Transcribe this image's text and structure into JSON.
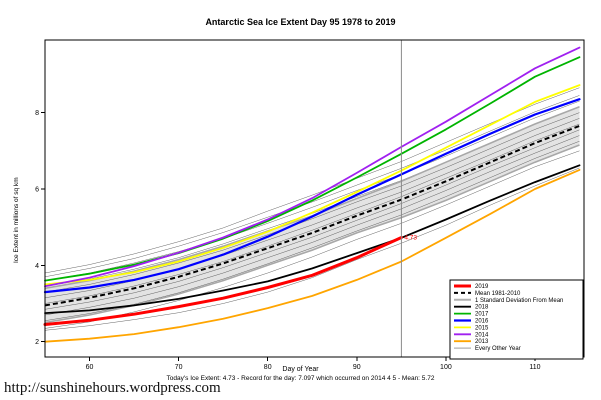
{
  "page": {
    "url_text": "http://sunshinehours.wordpress.com"
  },
  "chart_data": {
    "type": "line",
    "title": "Antarctic Sea Ice Extent Day 95 1978 to 2019",
    "xlabel": "Day of Year",
    "ylabel": "Ice Extent in millions of sq km",
    "caption": "Today's Ice Extent: 4.73  -  Record for the day: 7.097 which occurred on 2014 4 5  -  Mean: 5.72",
    "xlim": [
      55,
      115.5
    ],
    "ylim": [
      1.6,
      9.9
    ],
    "xticks": [
      60,
      70,
      80,
      90,
      100,
      110
    ],
    "yticks": [
      2,
      4,
      6,
      8
    ],
    "grid": false,
    "vline_x": 95,
    "annotation": {
      "x": 95,
      "y": 4.73,
      "text": "4.73",
      "color": "#ff0000"
    },
    "x": [
      55,
      60,
      65,
      70,
      75,
      80,
      85,
      90,
      95,
      100,
      105,
      110,
      115
    ],
    "mean_label": "Mean 1981-2010",
    "mean": [
      2.95,
      3.15,
      3.4,
      3.7,
      4.05,
      4.45,
      4.85,
      5.3,
      5.72,
      6.2,
      6.7,
      7.2,
      7.65
    ],
    "sd_band": {
      "upper": [
        3.4,
        3.6,
        3.85,
        4.15,
        4.5,
        4.9,
        5.3,
        5.75,
        6.2,
        6.7,
        7.2,
        7.7,
        8.15
      ],
      "lower": [
        2.5,
        2.7,
        2.95,
        3.25,
        3.6,
        4.0,
        4.4,
        4.85,
        5.25,
        5.7,
        6.2,
        6.7,
        7.15
      ]
    },
    "series": [
      {
        "name": "2013",
        "color": "#ffa500",
        "width": 1.8,
        "values": [
          2.0,
          2.08,
          2.2,
          2.38,
          2.6,
          2.88,
          3.2,
          3.62,
          4.1,
          4.72,
          5.35,
          6.0,
          6.5
        ]
      },
      {
        "name": "2018",
        "color": "#000000",
        "width": 1.8,
        "values": [
          2.75,
          2.82,
          2.95,
          3.12,
          3.34,
          3.58,
          3.92,
          4.32,
          4.72,
          5.2,
          5.7,
          6.18,
          6.62
        ]
      },
      {
        "name": "2016",
        "color": "#0000ff",
        "width": 2.2,
        "values": [
          3.3,
          3.42,
          3.62,
          3.9,
          4.28,
          4.75,
          5.28,
          5.85,
          6.38,
          6.92,
          7.45,
          7.95,
          8.35
        ]
      },
      {
        "name": "2015",
        "color": "#ffff00",
        "width": 1.8,
        "values": [
          3.5,
          3.62,
          3.82,
          4.1,
          4.46,
          4.88,
          5.38,
          5.92,
          6.48,
          7.08,
          7.68,
          8.28,
          8.72
        ]
      },
      {
        "name": "2017",
        "color": "#00b400",
        "width": 1.8,
        "values": [
          3.6,
          3.78,
          4.02,
          4.32,
          4.7,
          5.16,
          5.7,
          6.3,
          6.92,
          7.56,
          8.24,
          8.94,
          9.45
        ]
      },
      {
        "name": "2014",
        "color": "#a020f0",
        "width": 1.8,
        "values": [
          3.45,
          3.68,
          3.98,
          4.33,
          4.73,
          5.2,
          5.76,
          6.42,
          7.1,
          7.76,
          8.46,
          9.16,
          9.7
        ]
      },
      {
        "name": "2019",
        "color": "#ff0000",
        "width": 3,
        "x": [
          55,
          60,
          65,
          70,
          75,
          80,
          85,
          90,
          95
        ],
        "values": [
          2.45,
          2.56,
          2.72,
          2.92,
          3.14,
          3.42,
          3.74,
          4.2,
          4.73
        ]
      }
    ],
    "other_years": [
      [
        2.3,
        2.42,
        2.58,
        2.76,
        3.0,
        3.3,
        3.68,
        4.15,
        4.58,
        5.05,
        5.58,
        6.08,
        6.55
      ],
      [
        2.35,
        2.52,
        2.78,
        3.08,
        3.42,
        3.8,
        4.22,
        4.68,
        5.1,
        5.58,
        6.08,
        6.58,
        7.0
      ],
      [
        2.55,
        2.74,
        2.98,
        3.28,
        3.64,
        4.04,
        4.46,
        4.9,
        5.32,
        5.8,
        6.3,
        6.8,
        7.25
      ],
      [
        2.7,
        2.9,
        3.14,
        3.44,
        3.8,
        4.2,
        4.6,
        5.05,
        5.48,
        5.96,
        6.46,
        6.94,
        7.4
      ],
      [
        2.85,
        3.04,
        3.28,
        3.58,
        3.94,
        4.34,
        4.74,
        5.18,
        5.62,
        6.1,
        6.6,
        7.08,
        7.55
      ],
      [
        3.0,
        3.2,
        3.46,
        3.76,
        4.1,
        4.5,
        4.92,
        5.36,
        5.8,
        6.28,
        6.76,
        7.26,
        7.7
      ],
      [
        3.15,
        3.34,
        3.6,
        3.9,
        4.26,
        4.66,
        5.06,
        5.5,
        5.92,
        6.4,
        6.9,
        7.4,
        7.85
      ],
      [
        3.3,
        3.5,
        3.76,
        4.06,
        4.4,
        4.8,
        5.22,
        5.66,
        6.08,
        6.56,
        7.06,
        7.56,
        8.0
      ],
      [
        3.45,
        3.64,
        3.9,
        4.2,
        4.56,
        4.96,
        5.36,
        5.8,
        6.22,
        6.7,
        7.2,
        7.7,
        8.15
      ],
      [
        3.6,
        3.8,
        4.06,
        4.36,
        4.7,
        5.1,
        5.52,
        5.96,
        6.38,
        6.86,
        7.36,
        7.86,
        8.3
      ],
      [
        3.7,
        3.92,
        4.18,
        4.5,
        4.86,
        5.26,
        5.66,
        6.1,
        6.54,
        7.02,
        7.52,
        8.02,
        8.45
      ],
      [
        3.8,
        4.02,
        4.3,
        4.62,
        4.98,
        5.42,
        5.84,
        6.28,
        6.72,
        7.22,
        7.72,
        8.22,
        8.65
      ]
    ],
    "legend": {
      "position": "bottom-right",
      "entries": [
        {
          "label": "2019",
          "color": "#ff0000",
          "width": 3
        },
        {
          "label": "Mean 1981-2010",
          "color": "#000000",
          "width": 2,
          "dash": "4 3"
        },
        {
          "label": "1 Standard Deviation From Mean",
          "color": "#b0b0b0",
          "width": 2
        },
        {
          "label": "2018",
          "color": "#000000",
          "width": 1.8
        },
        {
          "label": "2017",
          "color": "#00b400",
          "width": 1.8
        },
        {
          "label": "2016",
          "color": "#0000ff",
          "width": 2.2
        },
        {
          "label": "2015",
          "color": "#ffff00",
          "width": 1.8
        },
        {
          "label": "2014",
          "color": "#a020f0",
          "width": 1.8
        },
        {
          "label": "2013",
          "color": "#ffa500",
          "width": 1.8
        },
        {
          "label": "Every Other Year",
          "color": "#606060",
          "width": 0.6
        }
      ]
    }
  }
}
